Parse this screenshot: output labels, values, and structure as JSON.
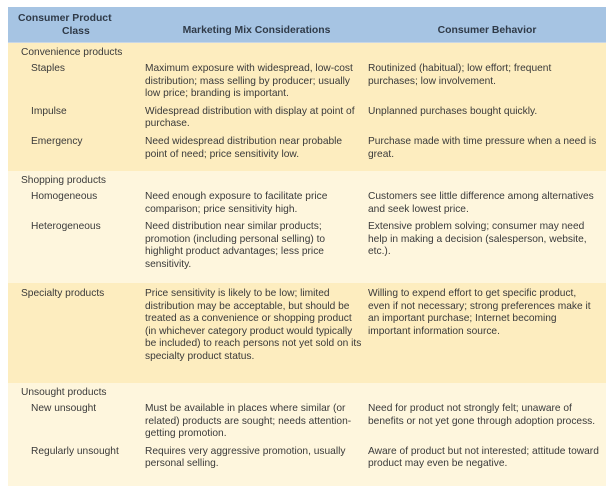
{
  "header": {
    "col1_line1": "Consumer Product",
    "col1_line2": "Class",
    "col2": "Marketing Mix Considerations",
    "col3": "Consumer Behavior"
  },
  "colors": {
    "header_bg": "#a6c4e3",
    "section_dark_bg": "#fdedbf",
    "section_light_bg": "#fef6dd"
  },
  "sections": [
    {
      "title": "Convenience products",
      "rows": [
        {
          "class": "Staples",
          "marketing": "Maximum exposure with widespread, low-cost distribution; mass selling by producer; usually low price; branding is important.",
          "behavior": "Routinized (habitual); low effort; frequent purchases; low involvement."
        },
        {
          "class": "Impulse",
          "marketing": "Widespread distribution with display at point of purchase.",
          "behavior": "Unplanned purchases bought quickly."
        },
        {
          "class": "Emergency",
          "marketing": "Need widespread distribution near probable point of need; price sensitivity low.",
          "behavior": "Purchase made with time pressure when a need is great."
        }
      ]
    },
    {
      "title": "Shopping products",
      "rows": [
        {
          "class": "Homogeneous",
          "marketing": "Need enough exposure to facilitate price comparison; price sensitivity high.",
          "behavior": "Customers see little difference among alternatives and seek lowest price."
        },
        {
          "class": "Heterogeneous",
          "marketing": "Need distribution near similar products; promotion (including personal selling) to highlight product advantages; less price sensitivity.",
          "behavior": "Extensive problem solving; consumer may need help in making a decision (salesperson, website, etc.)."
        }
      ]
    },
    {
      "title": "Specialty products",
      "rows": [
        {
          "class": "Specialty products",
          "marketing": "Price sensitivity is likely to be low; limited distribution may be acceptable, but should be treated as a convenience or shopping product (in whichever category product would typically be included) to reach persons not yet sold on its specialty product status.",
          "behavior": "Willing to expend effort to get specific product, even if not necessary; strong preferences make it an important purchase; Internet becoming important information source."
        }
      ]
    },
    {
      "title": "Unsought products",
      "rows": [
        {
          "class": "New unsought",
          "marketing": "Must be available in places where similar (or related) products are sought; needs attention-getting promotion.",
          "behavior": "Need for product not strongly felt; unaware of benefits or not yet gone through adoption process."
        },
        {
          "class": "Regularly unsought",
          "marketing": "Requires very aggressive promotion, usually personal selling.",
          "behavior": "Aware of product but not interested; attitude toward product may even be negative."
        }
      ]
    }
  ]
}
